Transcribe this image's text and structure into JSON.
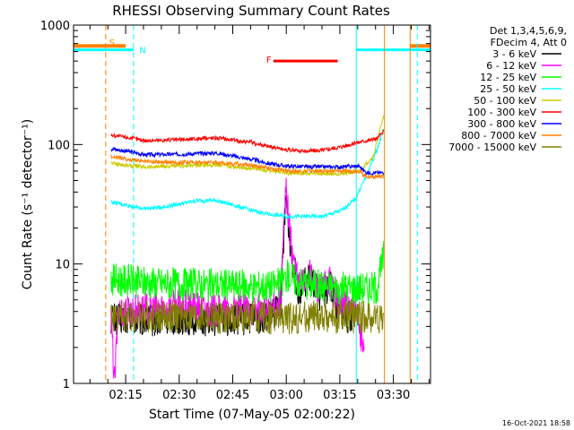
{
  "chart_data": {
    "type": "line",
    "title": "RHESSI Observing Summary Count Rates",
    "xlabel": "Start Time (07-May-05 02:00:22)",
    "ylabel": "Count Rate (s⁻¹ detector⁻¹)",
    "y_scale": "log",
    "ylim": [
      1,
      1000
    ],
    "xlim_minutes": [
      0,
      100
    ],
    "x_ticks": [
      {
        "minute": 14.6,
        "label": "02:15"
      },
      {
        "minute": 29.6,
        "label": "02:30"
      },
      {
        "minute": 44.6,
        "label": "02:45"
      },
      {
        "minute": 59.6,
        "label": "03:00"
      },
      {
        "minute": 74.6,
        "label": "03:15"
      },
      {
        "minute": 89.6,
        "label": "03:30"
      }
    ],
    "y_ticks": [
      {
        "value": 1,
        "label": "1"
      },
      {
        "value": 10,
        "label": "10"
      },
      {
        "value": 100,
        "label": "100"
      },
      {
        "value": 1000,
        "label": "1000"
      }
    ],
    "legend_header": [
      "Det 1,3,4,5,6,9,",
      "FDecim 4, Att 0"
    ],
    "series": [
      {
        "name": "3 - 6 keV",
        "color": "#000000",
        "x": [
          10.5,
          20,
          30,
          40,
          50,
          55,
          58,
          59.5,
          61,
          63,
          66,
          69,
          72,
          74,
          77,
          78
        ],
        "y": [
          3.5,
          3.4,
          3.5,
          3.4,
          3.5,
          3.6,
          4.5,
          35,
          12,
          6,
          7.5,
          5.5,
          6.5,
          4,
          3.5,
          3.5
        ]
      },
      {
        "name": "6 - 12 keV",
        "color": "#ff00ff",
        "x": [
          10.5,
          11.5,
          12.5,
          20,
          30,
          40,
          50,
          55,
          58,
          59.5,
          61,
          63,
          66,
          69,
          72,
          74,
          77,
          78,
          80,
          81.5
        ],
        "y": [
          3.5,
          1,
          4,
          4.2,
          4.5,
          4,
          4.2,
          4,
          5,
          45,
          14,
          6.5,
          8,
          6,
          7,
          5,
          4.5,
          4.2,
          3,
          1.8
        ]
      },
      {
        "name": "12 - 25 keV",
        "color": "#00ff00",
        "x": [
          10.5,
          20,
          30,
          40,
          50,
          55,
          58,
          60,
          63,
          70,
          75,
          80,
          85,
          87
        ],
        "y": [
          7.5,
          7,
          6.8,
          6.7,
          6.5,
          6.5,
          6.8,
          8,
          7,
          6.5,
          6.3,
          6.3,
          6.3,
          12
        ]
      },
      {
        "name": "25 - 50 keV",
        "color": "#00ffff",
        "x": [
          10.5,
          15,
          20,
          25,
          30,
          35,
          40,
          45,
          50,
          55,
          60,
          65,
          70,
          75,
          79,
          82,
          85,
          87
        ],
        "y": [
          33,
          31,
          29,
          30,
          32,
          34,
          34,
          31,
          28,
          26,
          25,
          25,
          25,
          28,
          35,
          55,
          90,
          140
        ]
      },
      {
        "name": "50 - 100 keV",
        "color": "#cccc00",
        "x": [
          10.5,
          15,
          20,
          30,
          40,
          50,
          60,
          70,
          75,
          80,
          84,
          87
        ],
        "y": [
          70,
          67,
          65,
          66,
          68,
          63,
          58,
          57,
          57,
          60,
          80,
          180
        ]
      },
      {
        "name": "100 - 300 keV",
        "color": "#ff0000",
        "x": [
          10.5,
          15,
          20,
          30,
          40,
          50,
          55,
          60,
          65,
          70,
          75,
          80,
          85,
          87
        ],
        "y": [
          120,
          115,
          108,
          110,
          114,
          104,
          96,
          90,
          88,
          90,
          96,
          105,
          112,
          130
        ]
      },
      {
        "name": "300 - 800 keV",
        "color": "#0000ff",
        "x": [
          10.5,
          15,
          20,
          30,
          40,
          50,
          55,
          60,
          65,
          70,
          75,
          80,
          82,
          85,
          87
        ],
        "y": [
          92,
          88,
          82,
          83,
          85,
          75,
          69,
          66,
          65,
          65,
          65,
          66,
          58,
          58,
          58
        ]
      },
      {
        "name": "800 - 7000 keV",
        "color": "#ff8000",
        "x": [
          10.5,
          15,
          20,
          30,
          40,
          50,
          60,
          70,
          75,
          80,
          82,
          85,
          87
        ],
        "y": [
          80,
          75,
          72,
          71,
          71,
          67,
          60,
          60,
          60,
          60,
          54,
          54,
          54
        ]
      },
      {
        "name": "7000 - 15000 keV",
        "color": "#808000",
        "x": [
          10.5,
          20,
          30,
          40,
          50,
          60,
          70,
          80,
          87
        ],
        "y": [
          3.6,
          3.7,
          3.6,
          3.5,
          3.6,
          3.5,
          3.6,
          3.6,
          3.6
        ]
      }
    ],
    "annotations": {
      "markers": [
        {
          "label": "S",
          "color": "#ff8000"
        },
        {
          "label": "N",
          "color": "#00ffff"
        },
        {
          "label": "F",
          "color": "#ff0000"
        }
      ],
      "flare_bar": {
        "start_minute": 56,
        "end_minute": 74,
        "value": 500,
        "color": "#ff0000"
      },
      "saa_band": {
        "start_minute": 0,
        "end_minute": 14.6,
        "value": 670,
        "color": "#ff8000"
      },
      "night_band": {
        "start_minute": 0,
        "end_minute": 16.8,
        "value": 620,
        "color": "#00ffff"
      },
      "night_band_right": {
        "start_minute": 79.2,
        "end_minute": 100,
        "value": 620,
        "color": "#00ffff"
      },
      "saa_band_right": {
        "start_minute": 94.3,
        "end_minute": 100,
        "value": 670,
        "color": "#ff8000"
      },
      "vlines": [
        {
          "minute": 9,
          "color": "#ff8000",
          "style": "dash"
        },
        {
          "minute": 16.8,
          "color": "#00ffff",
          "style": "dash"
        },
        {
          "minute": 79.2,
          "color": "#00ffff",
          "style": "solid"
        },
        {
          "minute": 87.1,
          "color": "#ff8000",
          "style": "solid"
        },
        {
          "minute": 94.3,
          "color": "#ff8000",
          "style": "solid"
        },
        {
          "minute": 96.3,
          "color": "#00ffff",
          "style": "dash"
        }
      ]
    },
    "timestamp": "16-Oct-2021 18:58"
  }
}
